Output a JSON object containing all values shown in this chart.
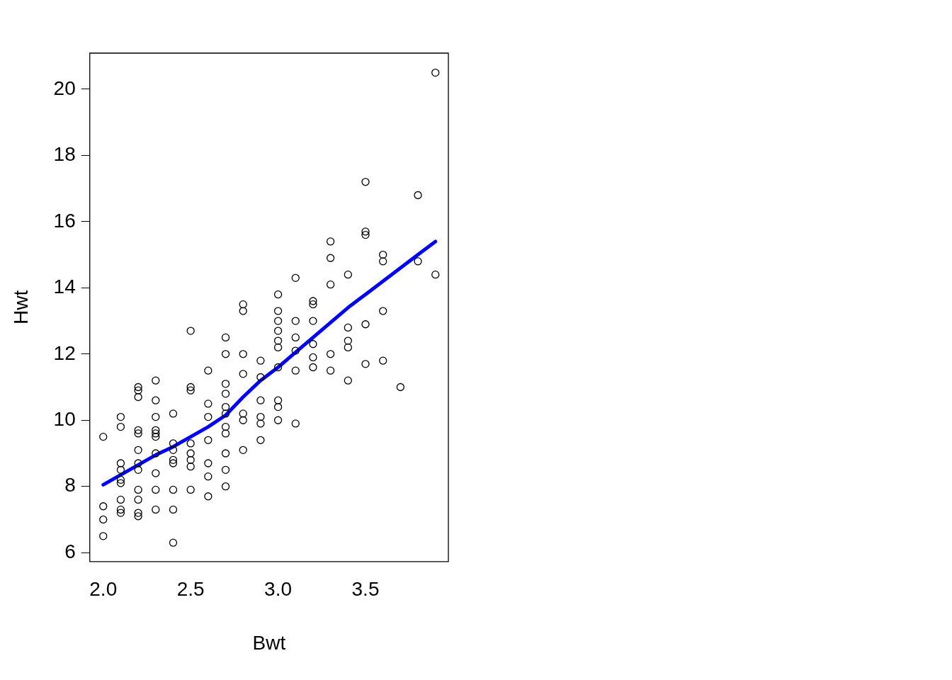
{
  "chart_data": {
    "type": "scatter",
    "xlabel": "Bwt",
    "ylabel": "Hwt",
    "xlim": [
      1.923,
      3.974
    ],
    "ylim": [
      5.73,
      21.09
    ],
    "xticks": [
      {
        "value": 2,
        "label": "2.0"
      },
      {
        "value": 2.5,
        "label": "2.5"
      },
      {
        "value": 3,
        "label": "3.0"
      },
      {
        "value": 3.5,
        "label": "3.5"
      }
    ],
    "yticks": [
      6,
      8,
      10,
      12,
      14,
      16,
      18,
      20
    ],
    "grid": false,
    "legend": false,
    "series": [
      {
        "marker": "circle",
        "color": "#000000",
        "x": [
          2.0,
          2.0,
          2.0,
          2.0,
          2.1,
          2.1,
          2.1,
          2.1,
          2.1,
          2.1,
          2.1,
          2.1,
          2.1,
          2.2,
          2.2,
          2.2,
          2.2,
          2.2,
          2.2,
          2.2,
          2.2,
          2.2,
          2.2,
          2.2,
          2.2,
          2.3,
          2.3,
          2.3,
          2.3,
          2.3,
          2.3,
          2.3,
          2.3,
          2.3,
          2.3,
          2.4,
          2.4,
          2.4,
          2.4,
          2.4,
          2.4,
          2.4,
          2.4,
          2.5,
          2.5,
          2.5,
          2.5,
          2.5,
          2.5,
          2.5,
          2.5,
          2.6,
          2.6,
          2.6,
          2.6,
          2.6,
          2.6,
          2.6,
          2.7,
          2.7,
          2.7,
          2.7,
          2.7,
          2.7,
          2.7,
          2.7,
          2.7,
          2.7,
          2.7,
          2.8,
          2.8,
          2.8,
          2.8,
          2.8,
          2.8,
          2.8,
          2.9,
          2.9,
          2.9,
          2.9,
          2.9,
          2.9,
          3.0,
          3.0,
          3.0,
          3.0,
          3.0,
          3.0,
          3.0,
          3.0,
          3.0,
          3.0,
          3.1,
          3.1,
          3.1,
          3.1,
          3.1,
          3.1,
          3.2,
          3.2,
          3.2,
          3.2,
          3.2,
          3.2,
          3.3,
          3.3,
          3.3,
          3.3,
          3.3,
          3.4,
          3.4,
          3.4,
          3.4,
          3.4,
          3.5,
          3.5,
          3.5,
          3.5,
          3.5,
          3.6,
          3.6,
          3.6,
          3.6,
          3.7,
          3.8,
          3.8,
          3.9,
          3.9
        ],
        "values": [
          9.5,
          7.4,
          7.0,
          6.5,
          10.1,
          9.8,
          8.7,
          8.5,
          8.2,
          8.1,
          7.6,
          7.3,
          7.2,
          11.0,
          10.9,
          10.7,
          9.7,
          9.6,
          9.1,
          8.7,
          8.5,
          7.9,
          7.6,
          7.2,
          7.1,
          11.2,
          10.6,
          10.1,
          9.7,
          9.6,
          9.5,
          9.0,
          8.4,
          7.9,
          7.3,
          10.2,
          9.3,
          9.1,
          8.8,
          8.7,
          7.9,
          7.3,
          6.3,
          12.7,
          11.0,
          10.9,
          9.3,
          9.0,
          8.8,
          8.6,
          7.9,
          11.5,
          10.5,
          10.1,
          9.4,
          8.7,
          8.3,
          7.7,
          12.5,
          12.0,
          11.1,
          10.8,
          10.4,
          10.2,
          9.8,
          9.6,
          9.0,
          8.5,
          8.0,
          13.5,
          13.3,
          12.0,
          11.4,
          10.2,
          10.0,
          9.1,
          11.8,
          11.3,
          10.6,
          10.1,
          9.9,
          9.4,
          13.8,
          13.3,
          13.0,
          12.7,
          12.4,
          12.2,
          11.6,
          10.6,
          10.4,
          10.0,
          14.3,
          13.0,
          12.5,
          12.1,
          11.5,
          9.9,
          13.6,
          13.5,
          13.0,
          12.3,
          11.9,
          11.6,
          15.4,
          14.9,
          14.1,
          12.0,
          11.5,
          14.4,
          12.8,
          12.4,
          12.2,
          11.2,
          17.2,
          15.7,
          15.6,
          12.9,
          11.7,
          15.0,
          14.8,
          13.3,
          11.8,
          11.0,
          16.8,
          14.8,
          20.5,
          14.4
        ]
      },
      {
        "type": "line",
        "marker": "none",
        "color": "#0000ff",
        "x": [
          2.0,
          2.1,
          2.2,
          2.3,
          2.4,
          2.5,
          2.6,
          2.7,
          2.8,
          2.9,
          3.0,
          3.1,
          3.2,
          3.3,
          3.4,
          3.5,
          3.6,
          3.7,
          3.8,
          3.9
        ],
        "values": [
          8.05,
          8.35,
          8.65,
          8.95,
          9.2,
          9.5,
          9.8,
          10.15,
          10.7,
          11.2,
          11.6,
          12.05,
          12.5,
          12.95,
          13.4,
          13.8,
          14.2,
          14.6,
          15.0,
          15.4
        ]
      }
    ]
  }
}
